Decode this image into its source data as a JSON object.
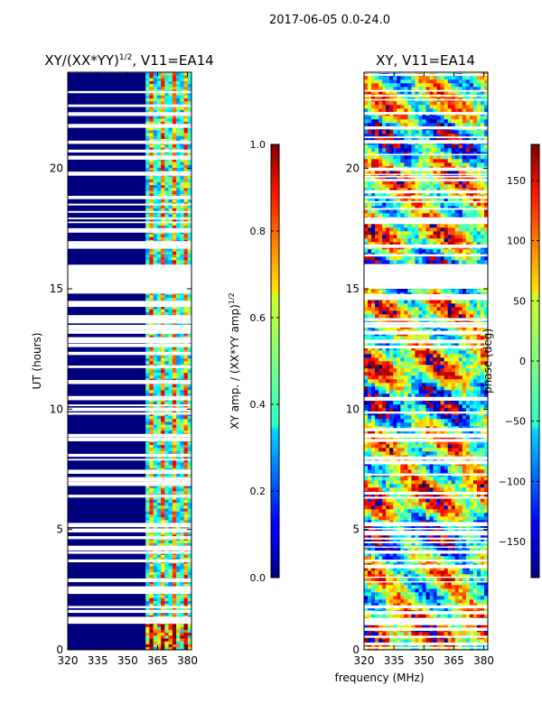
{
  "suptitle": "2017-06-05 0.0-24.0",
  "chart_data": [
    {
      "type": "heatmap",
      "title_main": "XY/(XX*YY)",
      "title_sup": "1/2",
      "title_rest": ", V11=EA14",
      "xlabel": "",
      "ylabel": "UT (hours)",
      "xlim": [
        320,
        382
      ],
      "ylim": [
        0,
        24
      ],
      "xticks": [
        320,
        335,
        350,
        365,
        380
      ],
      "yticks": [
        0,
        5,
        10,
        15,
        20
      ],
      "band_low_mhz": [
        320,
        359
      ],
      "band_high_mhz": [
        359,
        382
      ],
      "flagged_gap_ut": [
        14.8,
        16.0
      ],
      "colorbar": {
        "label_main": "XY amp. / (XX*YY amp)",
        "label_sup": "1/2",
        "range": [
          0.0,
          1.0
        ],
        "ticks": [
          "0.0",
          "0.2",
          "0.4",
          "0.6",
          "0.8",
          "1.0"
        ],
        "tick_values": [
          0.0,
          0.2,
          0.4,
          0.6,
          0.8,
          1.0
        ]
      }
    },
    {
      "type": "heatmap",
      "title": "XY, V11=EA14",
      "xlabel": "frequency (MHz)",
      "ylabel": "",
      "xlim": [
        320,
        382
      ],
      "ylim": [
        0,
        24
      ],
      "xticks": [
        320,
        335,
        350,
        365,
        380
      ],
      "yticks": [
        0,
        5,
        10,
        15,
        20
      ],
      "flagged_gap_ut": [
        15.0,
        16.0
      ],
      "colorbar": {
        "label": "phase (deg)",
        "range": [
          -180,
          180
        ],
        "ticks": [
          "150",
          "100",
          "50",
          "0",
          "−50",
          "−100",
          "−150"
        ],
        "tick_values": [
          150,
          100,
          50,
          0,
          -50,
          -100,
          -150
        ]
      }
    }
  ],
  "colors": {
    "jet_low": "#00007f",
    "jet_mid": "#7fff7f",
    "jet_high": "#7f0000",
    "flag": "#ffffff"
  }
}
